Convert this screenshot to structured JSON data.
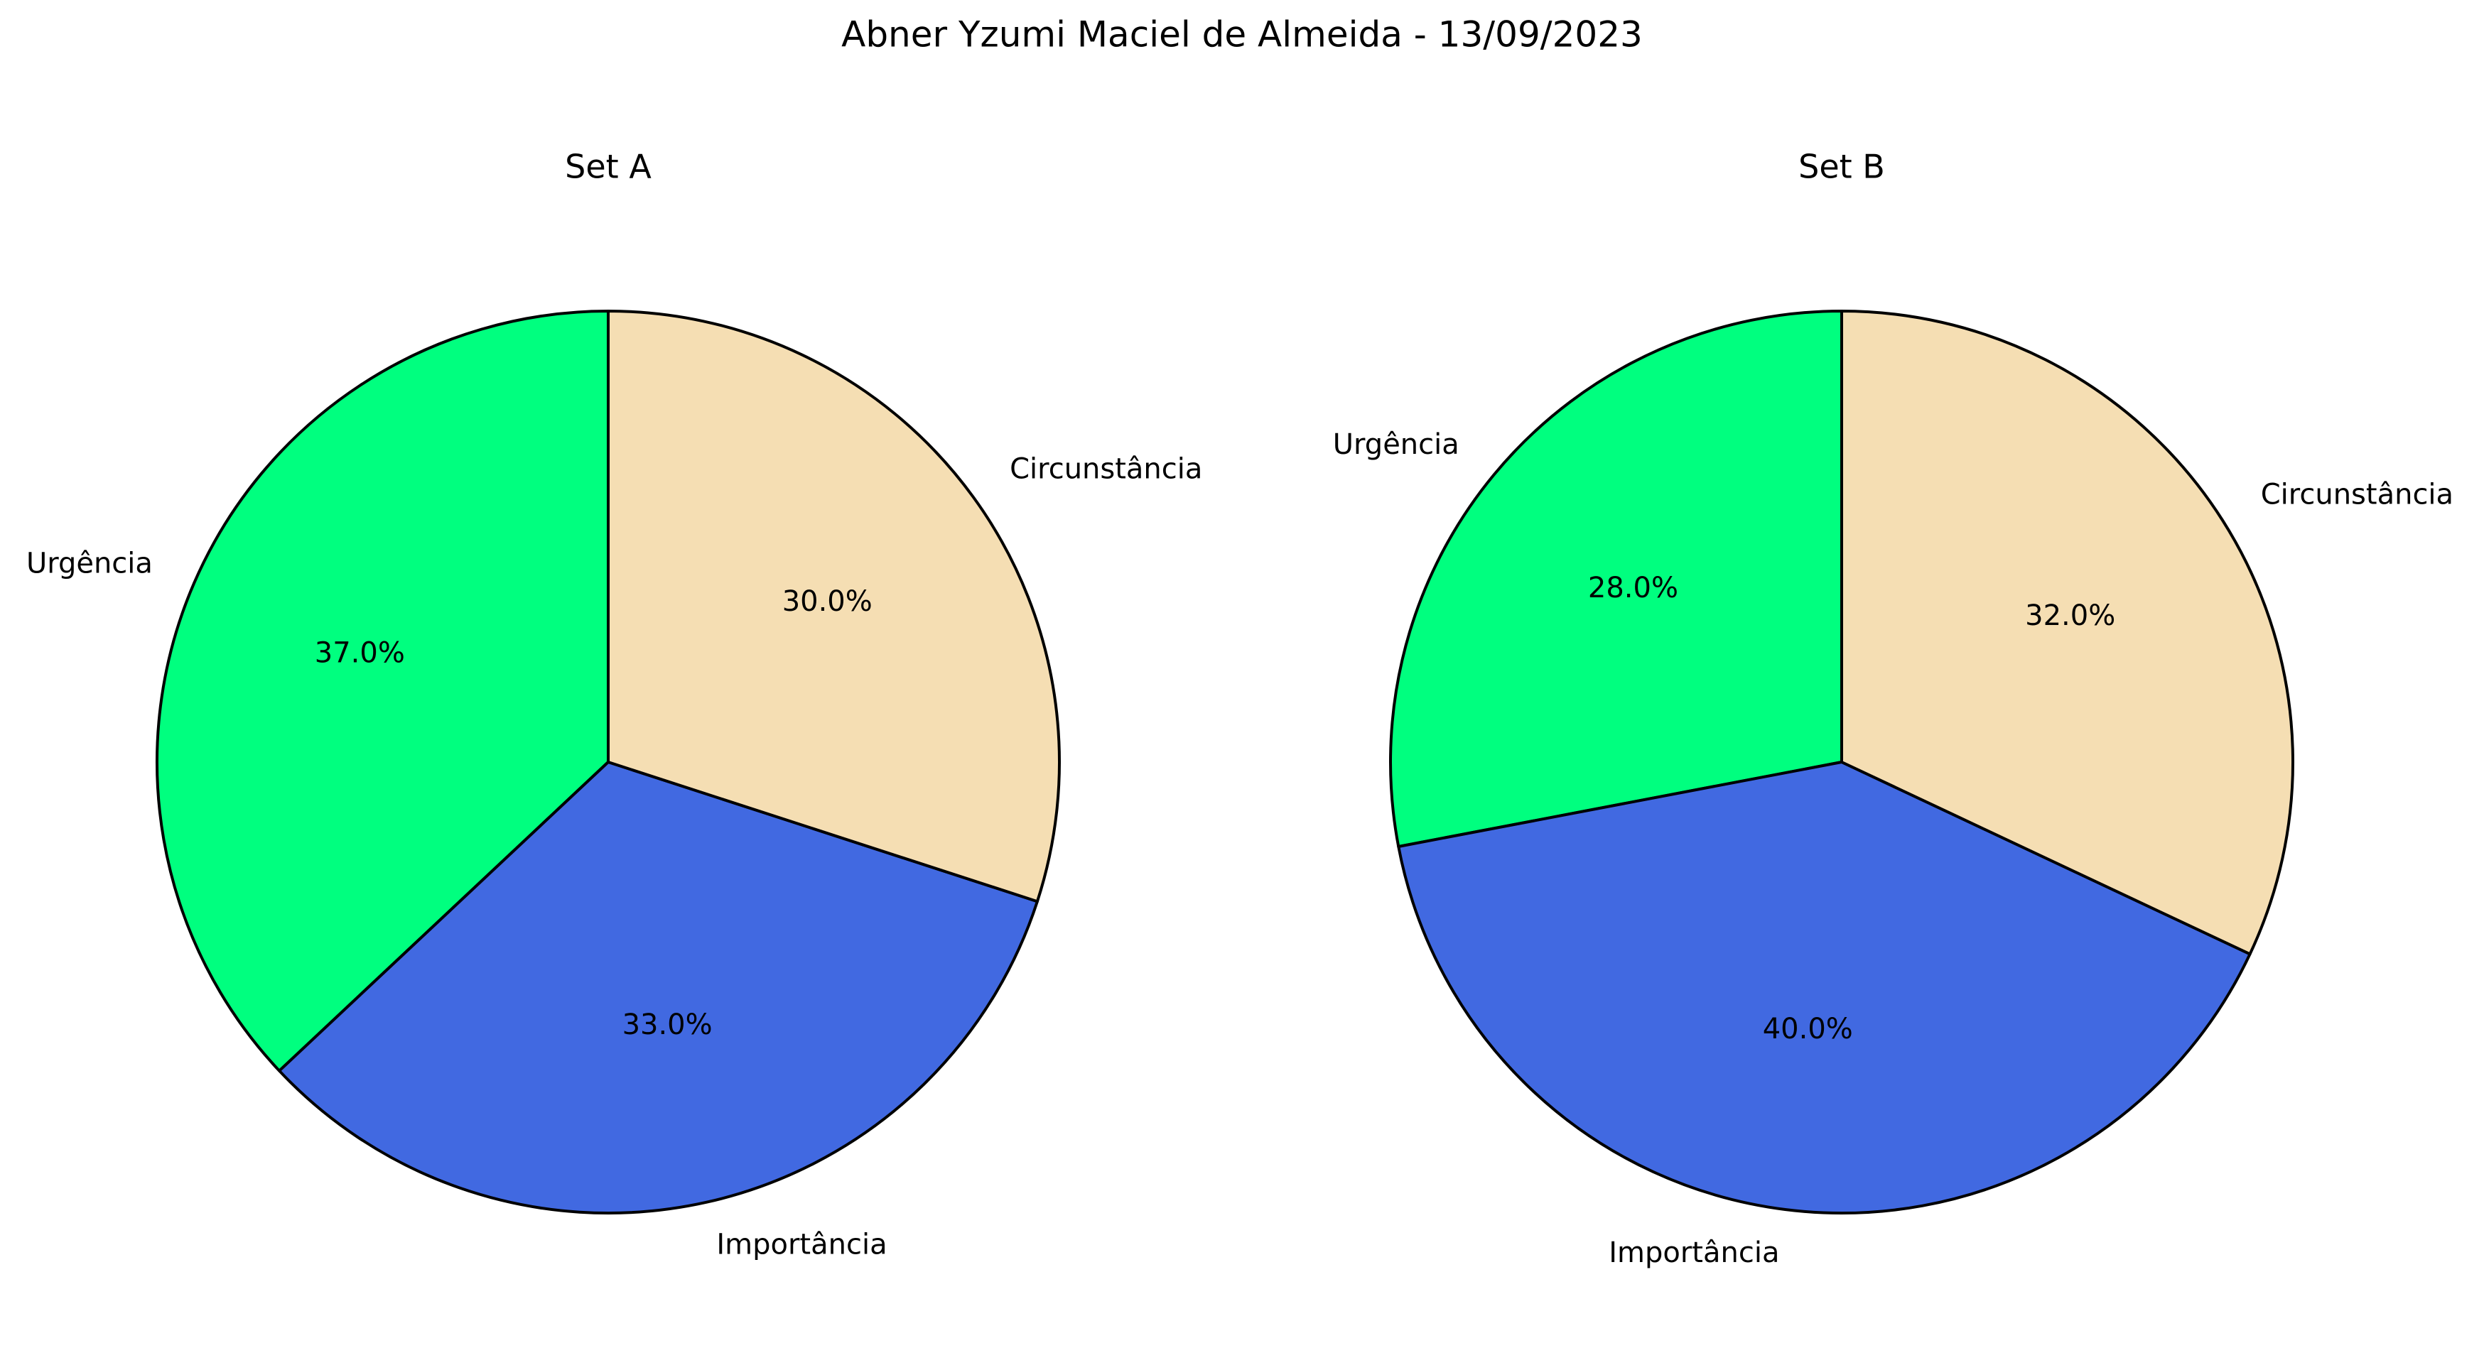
{
  "figure_title": "Abner Yzumi Maciel de Almeida - 13/09/2023",
  "chart_data": [
    {
      "type": "pie",
      "title": "Set A",
      "labels": [
        "Urgência",
        "Importância",
        "Circunstância"
      ],
      "values": [
        37.0,
        33.0,
        30.0
      ],
      "value_labels": [
        "37.0%",
        "33.0%",
        "30.0%"
      ],
      "colors": [
        "#00FF7F",
        "#4169E1",
        "#F5DEB3"
      ],
      "start_angle_deg": 90,
      "direction": "counterclockwise",
      "edge_color": "#000000"
    },
    {
      "type": "pie",
      "title": "Set B",
      "labels": [
        "Urgência",
        "Importância",
        "Circunstância"
      ],
      "values": [
        28.0,
        40.0,
        32.0
      ],
      "value_labels": [
        "28.0%",
        "40.0%",
        "32.0%"
      ],
      "colors": [
        "#00FF7F",
        "#4169E1",
        "#F5DEB3"
      ],
      "start_angle_deg": 90,
      "direction": "counterclockwise",
      "edge_color": "#000000"
    }
  ]
}
